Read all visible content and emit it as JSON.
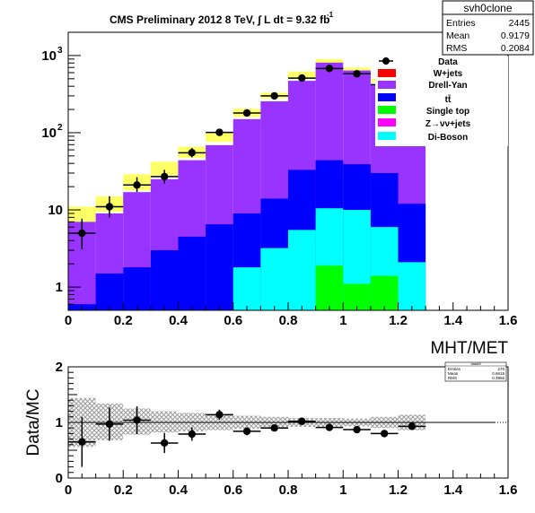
{
  "chart_data": [
    {
      "type": "bar",
      "subtype": "stacked-histogram",
      "title": "CMS Preliminary 2012 8 TeV, ∫ L dt = 9.32 fb",
      "title_superscript": "-1",
      "xlabel": "MHT/MET",
      "ylabel": "",
      "yscale": "log",
      "xlim": [
        0,
        1.6
      ],
      "ylim": [
        0.5,
        2000
      ],
      "x_ticks": [
        "0",
        "0.2",
        "0.4",
        "0.6",
        "0.8",
        "1",
        "1.2",
        "1.4",
        "1.6"
      ],
      "y_ticks": [
        "1",
        "10",
        "10^2",
        "10^3"
      ],
      "bin_edges": [
        0,
        0.1,
        0.2,
        0.3,
        0.4,
        0.5,
        0.6,
        0.7,
        0.8,
        0.9,
        1.0,
        1.1,
        1.2,
        1.3
      ],
      "stat_box": {
        "name": "svh0clone",
        "rows": [
          {
            "label": "Entries",
            "value": "2445"
          },
          {
            "label": "Mean",
            "value": "0.9179"
          },
          {
            "label": "RMS",
            "value": "0.2084"
          }
        ]
      },
      "legend": {
        "placement": "top-right",
        "entries": [
          {
            "label": "Data",
            "marker": "point",
            "color": "#000000"
          },
          {
            "label": "W+jets",
            "color": "#ff0000"
          },
          {
            "label": "Drell-Yan",
            "color": "#9933ff"
          },
          {
            "label": "tt̄",
            "color": "#0000ff"
          },
          {
            "label": "Single top",
            "color": "#00ff00"
          },
          {
            "label": "Z→νν+jets",
            "color": "#ff00ff"
          },
          {
            "label": "Di-Boson",
            "color": "#00ffff"
          }
        ]
      },
      "stack_cumulative": [
        {
          "color": "#00ff00",
          "values": [
            0,
            0,
            0,
            0,
            0,
            0,
            0,
            0,
            0,
            1.9,
            1.1,
            1.4,
            0
          ]
        },
        {
          "color": "#00ffff",
          "values": [
            0,
            0,
            0,
            0,
            0,
            0,
            1.8,
            3.2,
            5.5,
            10.5,
            10,
            6,
            2.1
          ]
        },
        {
          "color": "#0000ff",
          "values": [
            0.6,
            1.5,
            1.8,
            3,
            4.5,
            6.5,
            9,
            14,
            33,
            44,
            39,
            30,
            12
          ]
        },
        {
          "color": "#9933ff",
          "values": [
            7,
            9,
            17,
            25,
            44,
            69,
            150,
            255,
            470,
            810,
            640,
            420,
            80
          ]
        }
      ],
      "uncertainty_band": {
        "color": "#ffff66",
        "low": [
          7,
          9.5,
          18,
          28,
          47,
          76,
          160,
          280,
          520,
          780,
          630,
          450,
          85
        ],
        "high": [
          11,
          15,
          29,
          42,
          66,
          100,
          205,
          330,
          620,
          900,
          700,
          500,
          90
        ]
      },
      "data_points": {
        "x": [
          0.05,
          0.15,
          0.25,
          0.35,
          0.45,
          0.55,
          0.65,
          0.75,
          0.85,
          0.95,
          1.05,
          1.15
        ],
        "y": [
          5,
          11,
          21,
          27,
          55,
          101,
          180,
          300,
          510,
          680,
          580,
          420
        ],
        "err_low": [
          1.9,
          3,
          4,
          5,
          7,
          10,
          13,
          17,
          22,
          26,
          24,
          20
        ],
        "err_high": [
          2.7,
          4,
          5.5,
          6,
          8.5,
          11,
          14,
          18,
          23,
          27,
          25,
          21
        ]
      }
    },
    {
      "type": "scatter",
      "title": "",
      "xlabel": "",
      "ylabel": "Data/MC",
      "xlim": [
        0,
        1.6
      ],
      "ylim": [
        0,
        2
      ],
      "x_ticks": [
        "0",
        "0.2",
        "0.4",
        "0.6",
        "0.8",
        "1",
        "1.2",
        "1.4",
        "1.6"
      ],
      "y_ticks": [
        "0",
        "1",
        "2"
      ],
      "reference_line": 1,
      "stat_box": {
        "name": "dataM",
        "rows": [
          {
            "label": "Entries",
            "value": "276"
          },
          {
            "label": "Mean",
            "value": "0.6619"
          },
          {
            "label": "RMS",
            "value": "0.3966"
          }
        ]
      },
      "uncertainty_band": {
        "bin_edges": [
          0,
          0.1,
          0.2,
          0.3,
          0.4,
          0.5,
          0.6,
          0.7,
          0.8,
          0.9,
          1.0,
          1.1,
          1.2,
          1.3
        ],
        "low": [
          0.56,
          0.68,
          0.78,
          0.82,
          0.84,
          0.86,
          0.88,
          0.9,
          0.92,
          0.92,
          0.93,
          0.9,
          0.86
        ],
        "high": [
          1.44,
          1.34,
          1.25,
          1.2,
          1.17,
          1.14,
          1.12,
          1.1,
          1.08,
          1.08,
          1.07,
          1.1,
          1.14
        ]
      },
      "data_points": {
        "x": [
          0.05,
          0.15,
          0.25,
          0.35,
          0.45,
          0.55,
          0.65,
          0.75,
          0.85,
          0.95,
          1.05,
          1.15,
          1.25
        ],
        "y": [
          0.65,
          0.97,
          1.04,
          0.63,
          0.79,
          1.14,
          0.84,
          0.9,
          1.02,
          0.91,
          0.87,
          0.8,
          0.93
        ],
        "err": [
          0.45,
          0.3,
          0.25,
          0.18,
          0.12,
          0.09,
          0.07,
          0.06,
          0.05,
          0.04,
          0.04,
          0.05,
          0.06
        ]
      }
    }
  ]
}
